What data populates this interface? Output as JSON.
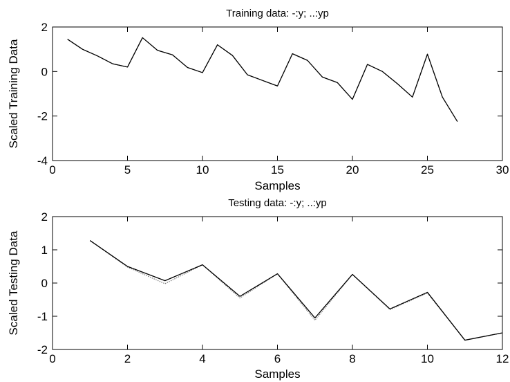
{
  "chart_data": [
    {
      "type": "line",
      "title": "Training data: -:y;  ..:yp",
      "xlabel": "Samples",
      "ylabel": "Scaled Training Data",
      "xlim": [
        0,
        30
      ],
      "ylim": [
        -4,
        2
      ],
      "xticks": [
        "0",
        "5",
        "10",
        "15",
        "20",
        "25",
        "30"
      ],
      "yticks": [
        "-4",
        "-2",
        "0",
        "2"
      ],
      "grid": false,
      "x": [
        1,
        2,
        3,
        4,
        5,
        6,
        7,
        8,
        9,
        10,
        11,
        12,
        13,
        14,
        15,
        16,
        17,
        18,
        19,
        20,
        21,
        22,
        23,
        24,
        25,
        26,
        27
      ],
      "series": [
        {
          "style": "solid",
          "color": "#000000",
          "values": [
            1.45,
            1.0,
            0.7,
            0.35,
            0.2,
            1.52,
            0.95,
            0.75,
            0.18,
            -0.05,
            1.2,
            0.72,
            -0.15,
            -0.4,
            -0.65,
            0.8,
            0.5,
            -0.25,
            -0.5,
            -1.25,
            0.32,
            0.0,
            -0.55,
            -1.15,
            0.78,
            -1.15,
            -2.25
          ]
        },
        {
          "style": "dotted",
          "color": "#7f7f7f",
          "values": [
            1.45,
            1.0,
            0.7,
            0.35,
            0.2,
            1.52,
            0.95,
            0.75,
            0.18,
            -0.05,
            1.2,
            0.72,
            -0.15,
            -0.4,
            -0.65,
            0.8,
            0.5,
            -0.25,
            -0.5,
            -1.25,
            0.32,
            0.0,
            -0.55,
            -1.15,
            0.78,
            -1.15,
            -2.25
          ]
        }
      ]
    },
    {
      "type": "line",
      "title": "Testing data: -:y;  ..:yp",
      "xlabel": "Samples",
      "ylabel": "Scaled Testing Data",
      "xlim": [
        0,
        12
      ],
      "ylim": [
        -2,
        2
      ],
      "xticks": [
        "0",
        "2",
        "4",
        "6",
        "8",
        "10",
        "12"
      ],
      "yticks": [
        "-2",
        "-1",
        "0",
        "1",
        "2"
      ],
      "grid": false,
      "x": [
        1,
        2,
        3,
        4,
        5,
        6,
        7,
        8,
        9,
        10,
        11,
        12
      ],
      "series": [
        {
          "style": "solid",
          "color": "#000000",
          "values": [
            1.28,
            0.5,
            0.07,
            0.55,
            -0.4,
            0.28,
            -1.05,
            0.26,
            -0.78,
            -0.28,
            -1.72,
            -1.5
          ]
        },
        {
          "style": "dotted",
          "color": "#7f7f7f",
          "values": [
            1.28,
            0.48,
            -0.02,
            0.55,
            -0.45,
            0.28,
            -1.12,
            0.26,
            -0.8,
            -0.3,
            -1.72,
            -1.5
          ]
        }
      ]
    }
  ]
}
